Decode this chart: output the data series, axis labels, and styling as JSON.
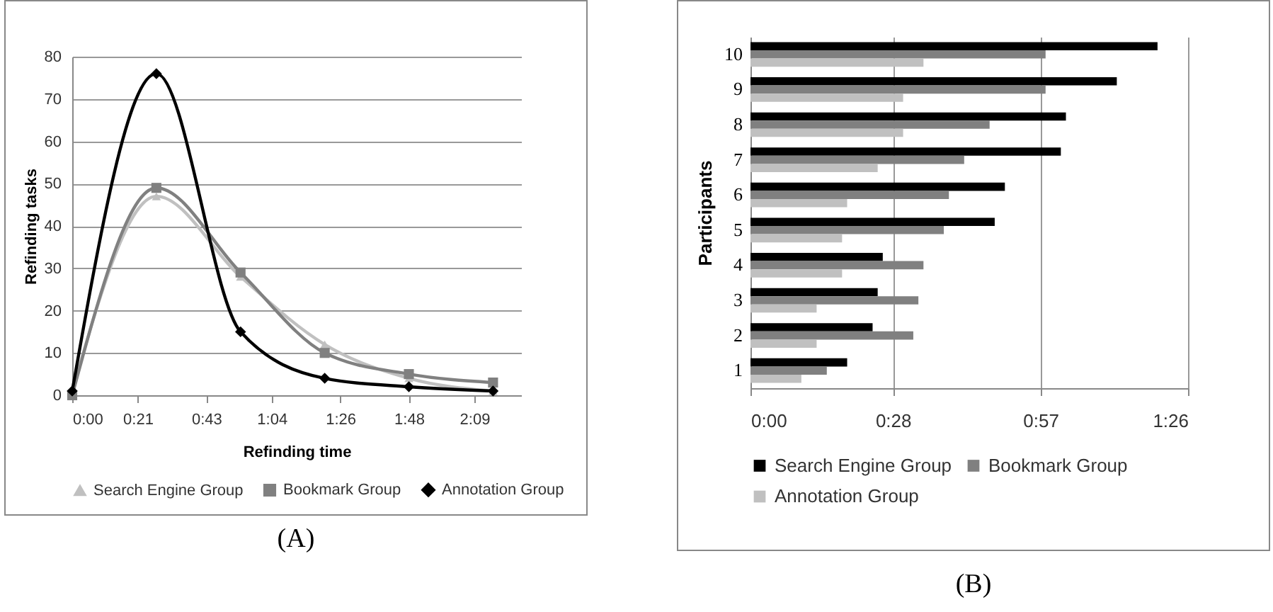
{
  "chart_data": [
    {
      "type": "line",
      "xlabel": "Refinding time",
      "ylabel": "Refinding tasks",
      "x": [
        0,
        27,
        54,
        81,
        108,
        135
      ],
      "xlim": [
        0,
        144
      ],
      "xticks": [
        {
          "value": 0,
          "label": "0:00"
        },
        {
          "value": 21,
          "label": "0:21"
        },
        {
          "value": 43,
          "label": "0:43"
        },
        {
          "value": 64,
          "label": "1:04"
        },
        {
          "value": 86,
          "label": "1:26"
        },
        {
          "value": 108,
          "label": "1:48"
        },
        {
          "value": 129,
          "label": "2:09"
        }
      ],
      "ylim": [
        0,
        80
      ],
      "yticks": [
        0,
        10,
        20,
        30,
        40,
        50,
        60,
        70,
        80
      ],
      "grid": "y",
      "legend": "bottom",
      "line_style": "solid",
      "series": [
        {
          "name": "Search Engine Group",
          "color": "#c0c0c0",
          "marker": "triangle",
          "values": [
            1,
            47,
            28,
            12,
            4,
            1
          ]
        },
        {
          "name": "Bookmark Group",
          "color": "#808080",
          "marker": "square",
          "values": [
            0,
            49,
            29,
            10,
            5,
            3
          ]
        },
        {
          "name": "Annotation Group",
          "color": "#000000",
          "marker": "diamond",
          "values": [
            1,
            76,
            15,
            4,
            2,
            1
          ]
        }
      ],
      "annotations": [
        "(A)"
      ]
    },
    {
      "type": "bar",
      "orientation": "horizontal",
      "ylabel": "Participants",
      "categories": [
        "10",
        "9",
        "8",
        "7",
        "6",
        "5",
        "4",
        "3",
        "2",
        "1"
      ],
      "xlim": [
        0,
        86
      ],
      "xticks": [
        {
          "value": 0,
          "label": "0:00"
        },
        {
          "value": 28,
          "label": "0:28"
        },
        {
          "value": 57,
          "label": "0:57"
        },
        {
          "value": 86,
          "label": "1:26"
        }
      ],
      "grid": "x",
      "legend": "bottom",
      "series": [
        {
          "name": "Search Engine Group",
          "color": "#000000",
          "values": [
            80,
            72,
            62,
            61,
            50,
            48,
            26,
            25,
            24,
            19
          ]
        },
        {
          "name": "Bookmark Group",
          "color": "#808080",
          "values": [
            58,
            58,
            47,
            42,
            39,
            38,
            34,
            33,
            32,
            15
          ]
        },
        {
          "name": "Annotation Group",
          "color": "#c0c0c0",
          "values": [
            34,
            30,
            30,
            25,
            19,
            18,
            18,
            13,
            13,
            10
          ]
        }
      ],
      "annotations": [
        "(B)"
      ]
    }
  ]
}
